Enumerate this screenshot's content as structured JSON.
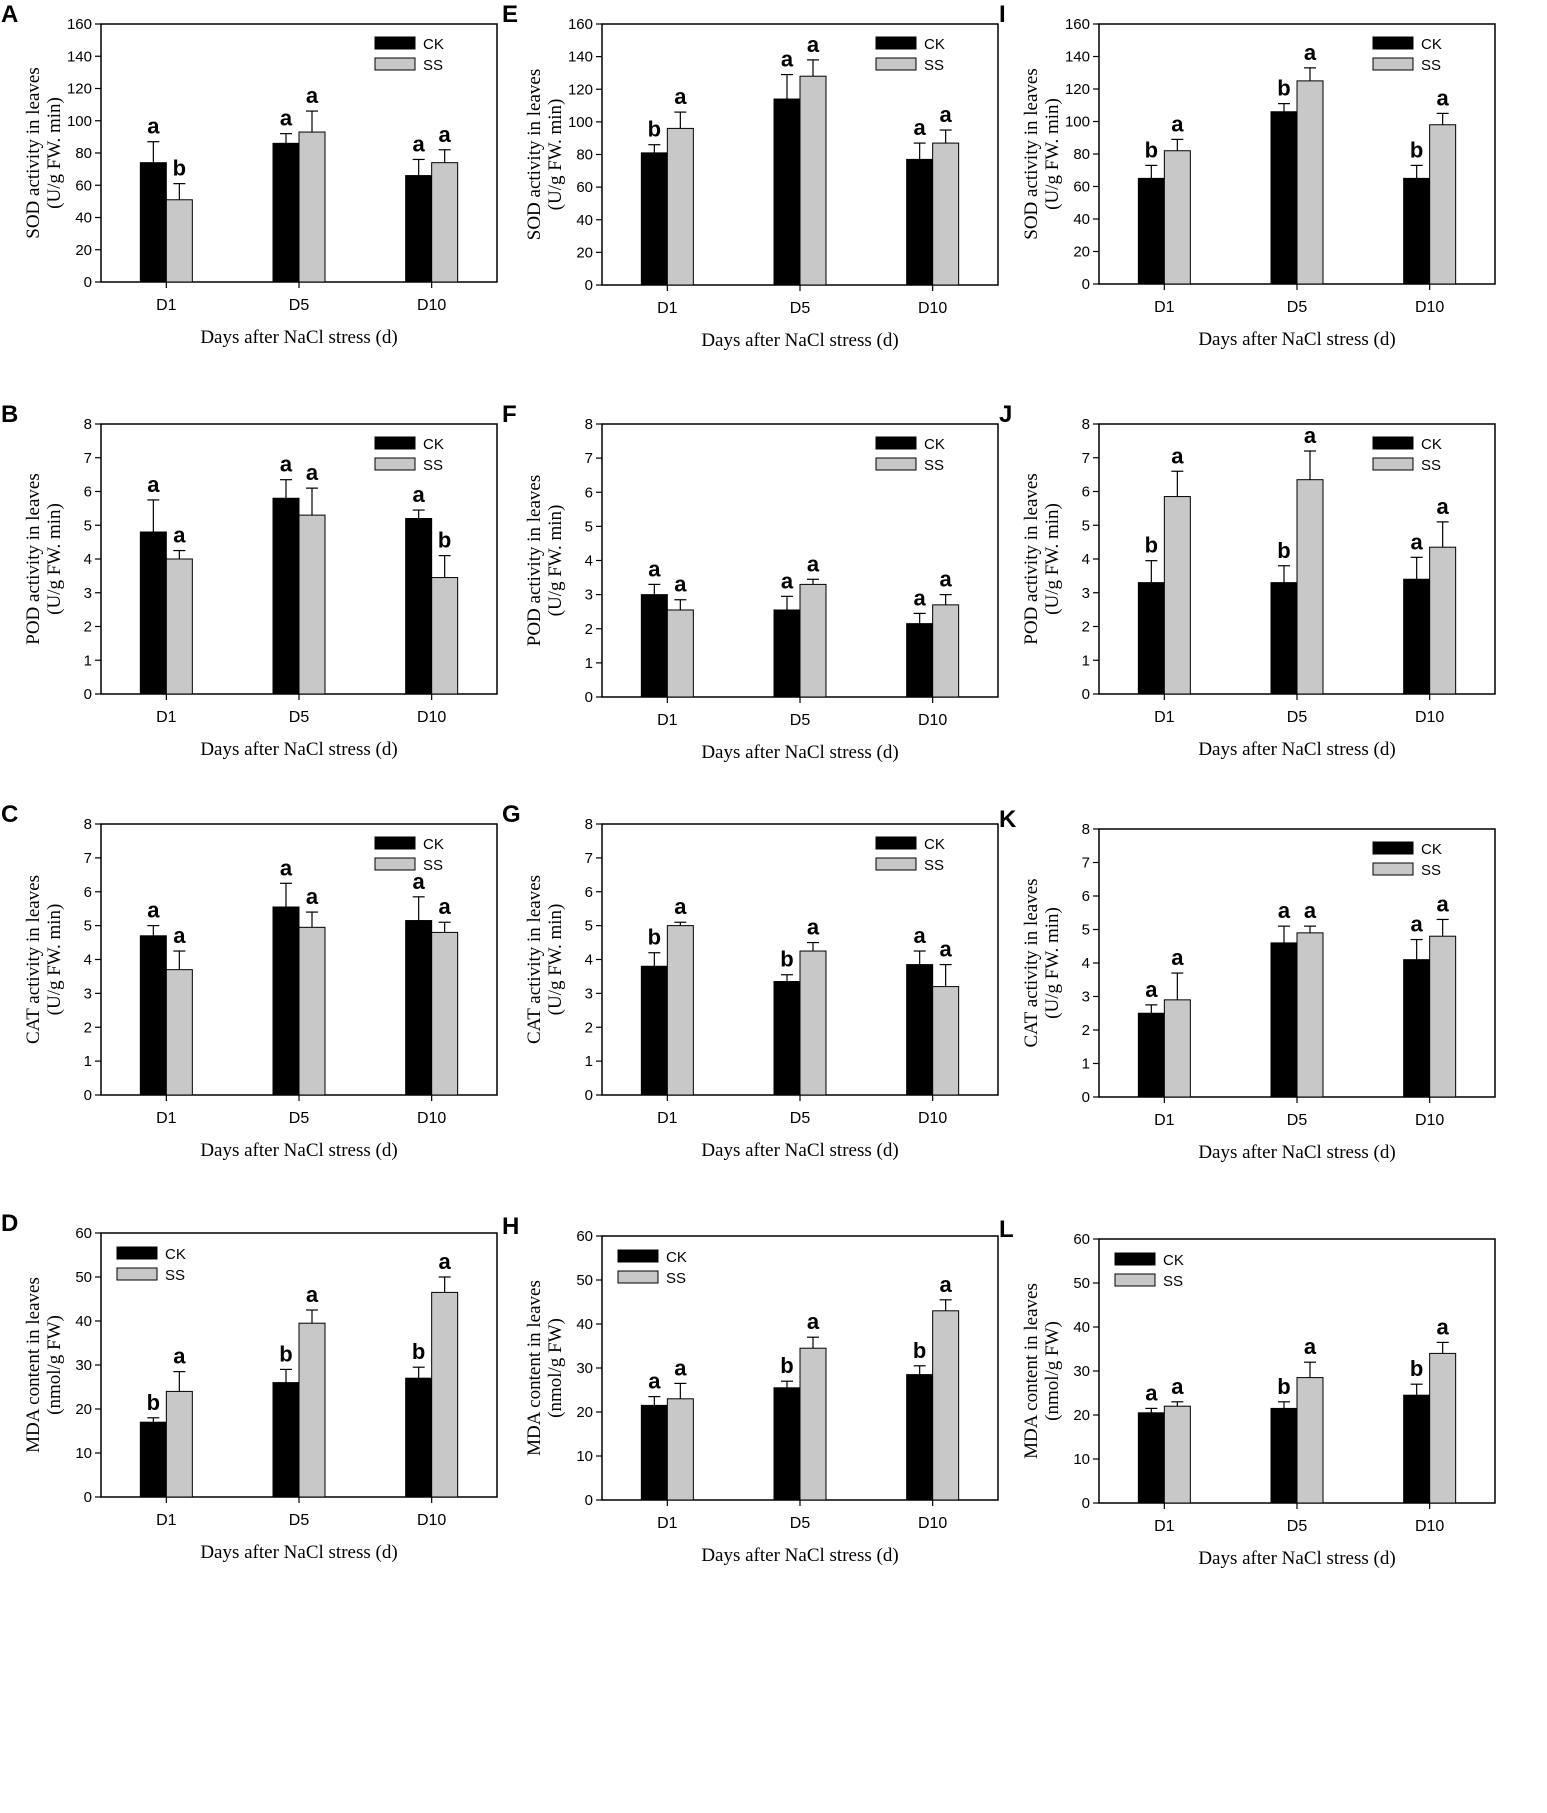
{
  "colors": {
    "ck_fill": "#000000",
    "ss_fill": "#c8c8c8",
    "axis": "#000000"
  },
  "xlabel": "Days after NaCl stress (d)",
  "legend": [
    "CK",
    "SS"
  ],
  "chart_data": [
    {
      "panel": "A",
      "type": "bar",
      "ylabel": [
        "SOD activity in leaves",
        "(U/g FW. min)"
      ],
      "ylim": [
        0,
        160
      ],
      "ytick_step": 20,
      "legend_position": "top-right",
      "categories": [
        "D1",
        "D5",
        "D10"
      ],
      "series": [
        {
          "name": "CK",
          "values": [
            74,
            86,
            66
          ],
          "errors": [
            13,
            6,
            10
          ],
          "letters": [
            "a",
            "a",
            "a"
          ]
        },
        {
          "name": "SS",
          "values": [
            51,
            93,
            74
          ],
          "errors": [
            10,
            13,
            8
          ],
          "letters": [
            "b",
            "a",
            "a"
          ]
        }
      ]
    },
    {
      "panel": "E",
      "type": "bar",
      "ylabel": [
        "SOD activity in leaves",
        "(U/g FW. min)"
      ],
      "ylim": [
        0,
        160
      ],
      "ytick_step": 20,
      "legend_position": "top-right",
      "categories": [
        "D1",
        "D5",
        "D10"
      ],
      "series": [
        {
          "name": "CK",
          "values": [
            81,
            114,
            77
          ],
          "errors": [
            5,
            15,
            10
          ],
          "letters": [
            "b",
            "a",
            "a"
          ]
        },
        {
          "name": "SS",
          "values": [
            96,
            128,
            87
          ],
          "errors": [
            10,
            10,
            8
          ],
          "letters": [
            "a",
            "a",
            "a"
          ]
        }
      ]
    },
    {
      "panel": "I",
      "type": "bar",
      "ylabel": [
        "SOD activity in leaves",
        "(U/g FW. min)"
      ],
      "ylim": [
        0,
        160
      ],
      "ytick_step": 20,
      "legend_position": "top-right",
      "categories": [
        "D1",
        "D5",
        "D10"
      ],
      "series": [
        {
          "name": "CK",
          "values": [
            65,
            106,
            65
          ],
          "errors": [
            8,
            5,
            8
          ],
          "letters": [
            "b",
            "b",
            "b"
          ]
        },
        {
          "name": "SS",
          "values": [
            82,
            125,
            98
          ],
          "errors": [
            7,
            8,
            7
          ],
          "letters": [
            "a",
            "a",
            "a"
          ]
        }
      ]
    },
    {
      "panel": "B",
      "type": "bar",
      "ylabel": [
        "POD activity in leaves",
        "(U/g FW. min)"
      ],
      "ylim": [
        0,
        8
      ],
      "ytick_step": 1,
      "legend_position": "top-right",
      "categories": [
        "D1",
        "D5",
        "D10"
      ],
      "series": [
        {
          "name": "CK",
          "values": [
            4.8,
            5.8,
            5.2
          ],
          "errors": [
            0.95,
            0.55,
            0.25
          ],
          "letters": [
            "a",
            "a",
            "a"
          ]
        },
        {
          "name": "SS",
          "values": [
            4.0,
            5.3,
            3.45
          ],
          "errors": [
            0.25,
            0.8,
            0.65
          ],
          "letters": [
            "a",
            "a",
            "b"
          ]
        }
      ]
    },
    {
      "panel": "F",
      "type": "bar",
      "ylabel": [
        "POD activity in leaves",
        "(U/g FW. min)"
      ],
      "ylim": [
        0,
        8
      ],
      "ytick_step": 1,
      "legend_position": "top-right",
      "categories": [
        "D1",
        "D5",
        "D10"
      ],
      "series": [
        {
          "name": "CK",
          "values": [
            3.0,
            2.55,
            2.15
          ],
          "errors": [
            0.3,
            0.4,
            0.3
          ],
          "letters": [
            "a",
            "a",
            "a"
          ]
        },
        {
          "name": "SS",
          "values": [
            2.55,
            3.3,
            2.7
          ],
          "errors": [
            0.3,
            0.15,
            0.3
          ],
          "letters": [
            "a",
            "a",
            "a"
          ]
        }
      ]
    },
    {
      "panel": "J",
      "type": "bar",
      "ylabel": [
        "POD activity in leaves",
        "(U/g FW. min)"
      ],
      "ylim": [
        0,
        8
      ],
      "ytick_step": 1,
      "legend_position": "top-right",
      "categories": [
        "D1",
        "D5",
        "D10"
      ],
      "series": [
        {
          "name": "CK",
          "values": [
            3.3,
            3.3,
            3.4
          ],
          "errors": [
            0.65,
            0.5,
            0.65
          ],
          "letters": [
            "b",
            "b",
            "a"
          ]
        },
        {
          "name": "SS",
          "values": [
            5.85,
            6.35,
            4.35
          ],
          "errors": [
            0.75,
            0.85,
            0.75
          ],
          "letters": [
            "a",
            "a",
            "a"
          ]
        }
      ]
    },
    {
      "panel": "C",
      "type": "bar",
      "ylabel": [
        "CAT activity in leaves",
        "(U/g FW. min)"
      ],
      "ylim": [
        0,
        8
      ],
      "ytick_step": 1,
      "legend_position": "top-right",
      "categories": [
        "D1",
        "D5",
        "D10"
      ],
      "series": [
        {
          "name": "CK",
          "values": [
            4.7,
            5.55,
            5.15
          ],
          "errors": [
            0.3,
            0.7,
            0.7
          ],
          "letters": [
            "a",
            "a",
            "a"
          ]
        },
        {
          "name": "SS",
          "values": [
            3.7,
            4.95,
            4.8
          ],
          "errors": [
            0.55,
            0.45,
            0.3
          ],
          "letters": [
            "a",
            "a",
            "a"
          ]
        }
      ]
    },
    {
      "panel": "G",
      "type": "bar",
      "ylabel": [
        "CAT activity in leaves",
        "(U/g FW. min)"
      ],
      "ylim": [
        0,
        8
      ],
      "ytick_step": 1,
      "legend_position": "top-right",
      "categories": [
        "D1",
        "D5",
        "D10"
      ],
      "series": [
        {
          "name": "CK",
          "values": [
            3.8,
            3.35,
            3.85
          ],
          "errors": [
            0.4,
            0.2,
            0.4
          ],
          "letters": [
            "b",
            "b",
            "a"
          ]
        },
        {
          "name": "SS",
          "values": [
            5.0,
            4.25,
            3.2
          ],
          "errors": [
            0.1,
            0.25,
            0.65
          ],
          "letters": [
            "a",
            "a",
            "a"
          ]
        }
      ]
    },
    {
      "panel": "K",
      "type": "bar",
      "ylabel": [
        "CAT activity in leaves",
        "(U/g FW. min)"
      ],
      "ylim": [
        0,
        8
      ],
      "ytick_step": 1,
      "legend_position": "top-right",
      "categories": [
        "D1",
        "D5",
        "D10"
      ],
      "series": [
        {
          "name": "CK",
          "values": [
            2.5,
            4.6,
            4.1
          ],
          "errors": [
            0.25,
            0.5,
            0.6
          ],
          "letters": [
            "a",
            "a",
            "a"
          ]
        },
        {
          "name": "SS",
          "values": [
            2.9,
            4.9,
            4.8
          ],
          "errors": [
            0.8,
            0.2,
            0.5
          ],
          "letters": [
            "a",
            "a",
            "a"
          ]
        }
      ]
    },
    {
      "panel": "D",
      "type": "bar",
      "ylabel": [
        "MDA content in leaves",
        "(nmol/g FW)"
      ],
      "ylim": [
        0,
        60
      ],
      "ytick_step": 10,
      "legend_position": "top-left",
      "categories": [
        "D1",
        "D5",
        "D10"
      ],
      "series": [
        {
          "name": "CK",
          "values": [
            17,
            26,
            27
          ],
          "errors": [
            1,
            3,
            2.5
          ],
          "letters": [
            "b",
            "b",
            "b"
          ]
        },
        {
          "name": "SS",
          "values": [
            24,
            39.5,
            46.5
          ],
          "errors": [
            4.5,
            3,
            3.5
          ],
          "letters": [
            "a",
            "a",
            "a"
          ]
        }
      ]
    },
    {
      "panel": "H",
      "type": "bar",
      "ylabel": [
        "MDA content in leaves",
        "(nmol/g FW)"
      ],
      "ylim": [
        0,
        60
      ],
      "ytick_step": 10,
      "legend_position": "top-left",
      "categories": [
        "D1",
        "D5",
        "D10"
      ],
      "series": [
        {
          "name": "CK",
          "values": [
            21.5,
            25.5,
            28.5
          ],
          "errors": [
            2,
            1.5,
            2
          ],
          "letters": [
            "a",
            "b",
            "b"
          ]
        },
        {
          "name": "SS",
          "values": [
            23,
            34.5,
            43
          ],
          "errors": [
            3.5,
            2.5,
            2.5
          ],
          "letters": [
            "a",
            "a",
            "a"
          ]
        }
      ]
    },
    {
      "panel": "L",
      "type": "bar",
      "ylabel": [
        "MDA content in leaves",
        "(nmol/g FW)"
      ],
      "ylim": [
        0,
        60
      ],
      "ytick_step": 10,
      "legend_position": "top-left",
      "categories": [
        "D1",
        "D5",
        "D10"
      ],
      "series": [
        {
          "name": "CK",
          "values": [
            20.5,
            21.5,
            24.5
          ],
          "errors": [
            1,
            1.5,
            2.5
          ],
          "letters": [
            "a",
            "b",
            "b"
          ]
        },
        {
          "name": "SS",
          "values": [
            22,
            28.5,
            34
          ],
          "errors": [
            1,
            3.5,
            2.5
          ],
          "letters": [
            "a",
            "a",
            "a"
          ]
        }
      ]
    }
  ]
}
